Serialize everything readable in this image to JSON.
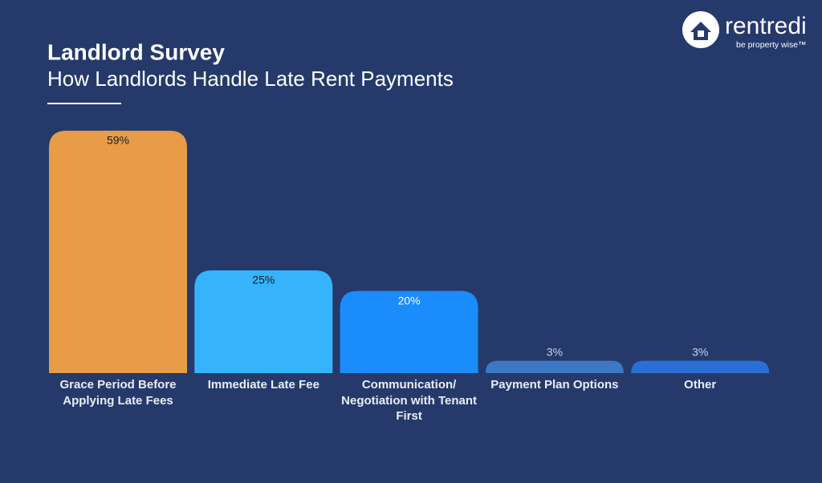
{
  "brand": {
    "name": "rentredi",
    "tagline": "be property wise™"
  },
  "chart_data": {
    "type": "bar",
    "title": "Landlord Survey",
    "subtitle": "How Landlords Handle Late Rent Payments",
    "categories": [
      "Grace Period Before Applying Late Fees",
      "Immediate Late Fee",
      "Communication/ Negotiation with Tenant First",
      "Payment Plan Options",
      "Other"
    ],
    "values": [
      59,
      25,
      20,
      3,
      3
    ],
    "value_labels": [
      "59%",
      "25%",
      "20%",
      "3%",
      "3%"
    ],
    "colors": [
      "#e89c48",
      "#35b4fb",
      "#1b8cfb",
      "#3d78c4",
      "#2a6fd5"
    ],
    "value_label_colors": [
      "#1a1a1a",
      "#1a1a1a",
      "#ffffff",
      "#c9d3e6",
      "#c9d3e6"
    ]
  }
}
